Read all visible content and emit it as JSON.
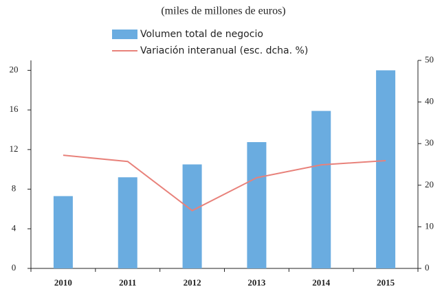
{
  "chart_data": {
    "type": "bar_line",
    "subtitle": "(miles de millones de euros)",
    "categories": [
      "2010",
      "2011",
      "2012",
      "2013",
      "2014",
      "2015"
    ],
    "series": [
      {
        "name": "Volumen total de negocio",
        "type": "bar",
        "color": "#6aace0",
        "values": [
          7.3,
          9.2,
          10.5,
          12.75,
          15.9,
          20.0
        ]
      },
      {
        "name": "Variación interanual (esc. dcha. %)",
        "type": "line",
        "axis": "y2",
        "color": "#e8817a",
        "values": [
          27.2,
          25.7,
          13.9,
          21.8,
          24.9,
          25.9
        ]
      }
    ],
    "ylim": [
      0,
      21
    ],
    "yticks": [
      0,
      4,
      8,
      12,
      16,
      20
    ],
    "y2lim": [
      0,
      50
    ],
    "y2ticks": [
      0,
      10,
      20,
      30,
      40,
      50
    ]
  }
}
